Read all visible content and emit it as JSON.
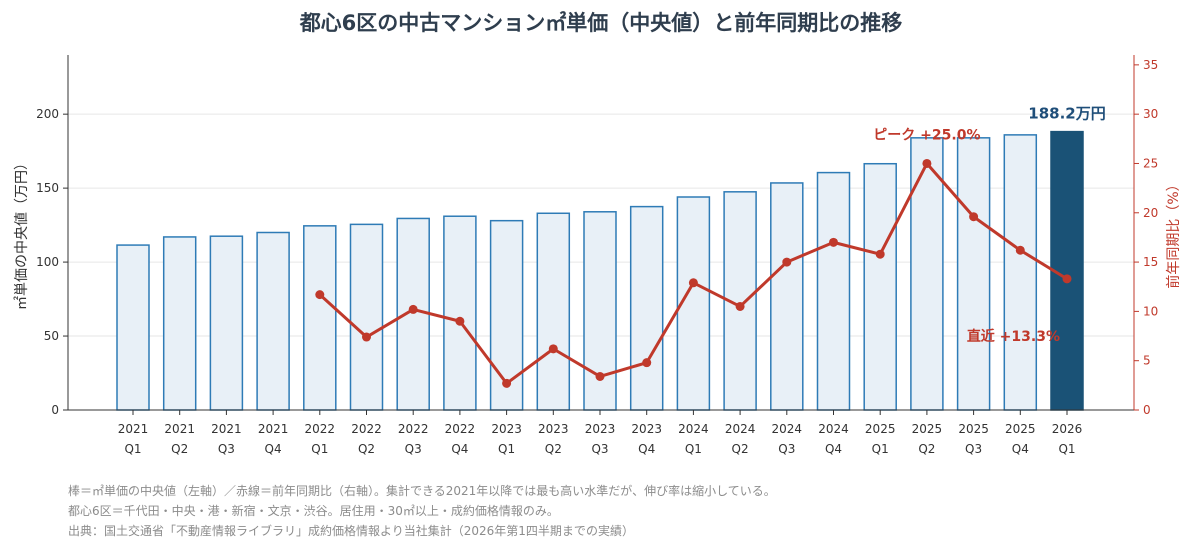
{
  "chart_data": {
    "type": "bar",
    "title": "都心6区の中古マンション㎡単価（中央値）と前年同期比の推移",
    "categories": [
      [
        "2021",
        "Q1"
      ],
      [
        "2021",
        "Q2"
      ],
      [
        "2021",
        "Q3"
      ],
      [
        "2021",
        "Q4"
      ],
      [
        "2022",
        "Q1"
      ],
      [
        "2022",
        "Q2"
      ],
      [
        "2022",
        "Q3"
      ],
      [
        "2022",
        "Q4"
      ],
      [
        "2023",
        "Q1"
      ],
      [
        "2023",
        "Q2"
      ],
      [
        "2023",
        "Q3"
      ],
      [
        "2023",
        "Q4"
      ],
      [
        "2024",
        "Q1"
      ],
      [
        "2024",
        "Q2"
      ],
      [
        "2024",
        "Q3"
      ],
      [
        "2024",
        "Q4"
      ],
      [
        "2025",
        "Q1"
      ],
      [
        "2025",
        "Q2"
      ],
      [
        "2025",
        "Q3"
      ],
      [
        "2025",
        "Q4"
      ],
      [
        "2026",
        "Q1"
      ]
    ],
    "series": [
      {
        "name": "㎡単価の中央値",
        "chart": "bar",
        "axis": "left",
        "values": [
          111.5,
          117,
          117.5,
          120,
          124.5,
          125.5,
          129.5,
          131,
          128,
          133,
          134,
          137.5,
          144,
          147.5,
          153.5,
          160.5,
          166.5,
          184,
          184,
          186,
          188.2
        ]
      },
      {
        "name": "前年同期比",
        "chart": "line",
        "axis": "right",
        "values": [
          null,
          null,
          null,
          null,
          11.7,
          7.4,
          10.2,
          9.0,
          2.7,
          6.2,
          3.4,
          4.8,
          12.9,
          10.5,
          15.0,
          17.0,
          15.8,
          25.0,
          19.6,
          16.2,
          13.3
        ]
      }
    ],
    "ylabel": "㎡単価の中央値（万円）",
    "ylim": [
      0,
      240
    ],
    "yticks": [
      0,
      50,
      100,
      150,
      200
    ],
    "y2label": "前年同期比（%）",
    "y2lim": [
      0,
      36
    ],
    "y2ticks": [
      0,
      5,
      10,
      15,
      20,
      25,
      30,
      35
    ],
    "grid": true,
    "highlight_index": 20,
    "annotations": {
      "latest_value": "188.2万円",
      "peak": "ピーク +25.0%",
      "latest_yoy": "直近 +13.3%"
    },
    "colors": {
      "bar_fill": "#e8f0f7",
      "bar_edge": "#2e7bb6",
      "bar_highlight": "#1a5276",
      "line": "#c0392b",
      "grid": "#e6e6e6",
      "title": "#2f3e4e"
    }
  },
  "notes": [
    "棒＝㎡単価の中央値（左軸）／赤線＝前年同期比（右軸）。集計できる2021年以降では最も高い水準だが、伸び率は縮小している。",
    "都心6区＝千代田・中央・港・新宿・文京・渋谷。居住用・30㎡以上・成約価格情報のみ。",
    "出典：国土交通省「不動産情報ライブラリ」成約価格情報より当社集計（2026年第1四半期までの実績）"
  ]
}
